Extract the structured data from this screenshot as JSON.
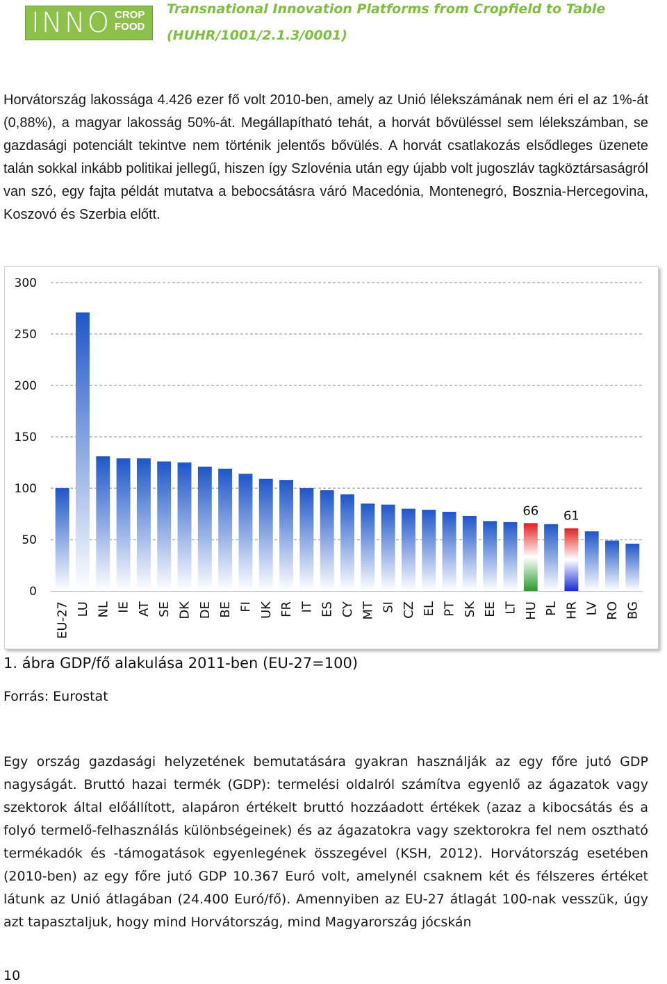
{
  "header": {
    "logo_inno": "INNO",
    "logo_crop": "CROP",
    "logo_food": "FOOD",
    "title": "Transnational Innovation Platforms from Cropfield to Table",
    "code": "(HUHR/1001/2.1.3/0001)"
  },
  "intro_text": "Horvátország lakossága 4.426 ezer fő volt 2010-ben, amely az Unió lélekszámának nem éri el az 1%-át (0,88%), a magyar lakosság 50%-át. Megállapítható tehát, a horvát bővüléssel sem lélekszámban, se gazdasági potenciált tekintve nem történik jelentős bővülés. A horvát csatlakozás elsődleges üzenete talán sokkal inkább politikai jellegű, hiszen így Szlovénia után egy újabb volt jugoszláv tagköztársaságról van szó, egy fajta példát mutatva a bebocsátásra váró Macedónia, Montenegró, Bosznia-Hercegovina, Koszovó és Szerbia előtt.",
  "chart_data": {
    "type": "bar",
    "title": "",
    "xlabel": "",
    "ylabel": "",
    "ylim": [
      0,
      300
    ],
    "yticks": [
      0,
      50,
      100,
      150,
      200,
      250,
      300
    ],
    "ytick_labels": [
      "0",
      "50",
      "100",
      "150",
      "200",
      "250",
      "300"
    ],
    "grid": true,
    "categories": [
      "EU-27",
      "LU",
      "NL",
      "IE",
      "AT",
      "SE",
      "DK",
      "DE",
      "BE",
      "FI",
      "UK",
      "FR",
      "IT",
      "ES",
      "CY",
      "MT",
      "SI",
      "CZ",
      "EL",
      "PT",
      "SK",
      "EE",
      "LT",
      "HU",
      "PL",
      "HR",
      "LV",
      "RO",
      "BG"
    ],
    "values": [
      100,
      271,
      131,
      129,
      129,
      126,
      125,
      121,
      119,
      114,
      109,
      108,
      100,
      98,
      94,
      85,
      84,
      80,
      79,
      77,
      73,
      68,
      67,
      66,
      65,
      61,
      58,
      49,
      46
    ],
    "data_labels": [
      {
        "category": "HU",
        "text": "66"
      },
      {
        "category": "HR",
        "text": "61"
      }
    ],
    "colors": {
      "bar_top": "#1e56c8",
      "bar_bottom": "#ffffff",
      "hu_top": "#e02020",
      "hu_mid": "#ffffff",
      "hu_bottom": "#2a9a2a",
      "hr_top": "#e02020",
      "hr_mid": "#ffffff",
      "hr_bottom": "#1a2ad8",
      "grid": "#888888"
    }
  },
  "figure": {
    "caption": "1. ábra GDP/fő alakulása 2011-ben (EU-27=100)",
    "source": "Forrás: Eurostat"
  },
  "body_text": "Egy ország gazdasági helyzetének bemutatására gyakran használják az egy főre jutó GDP nagyságát. Bruttó hazai termék (GDP): termelési oldalról számítva egyenlő az ágazatok vagy szektorok által előállított, alapáron értékelt bruttó hozzáadott értékek (azaz a kibocsátás és a folyó termelő-felhasználás különbségeinek) és az ágazatokra vagy szektorokra fel nem osztható termékadók és -támogatások egyenlegének összegével (KSH, 2012). Horvátország esetében (2010-ben) az egy főre jutó GDP 10.367 Euró volt, amelynél csaknem két és félszeres értéket látunk az Unió átlagában (24.400 Euró/fő). Amennyiben az EU-27 átlagát 100-nak vesszük, úgy azt tapasztaljuk, hogy mind Horvátország, mind Magyarország jócskán",
  "page_number": "10"
}
